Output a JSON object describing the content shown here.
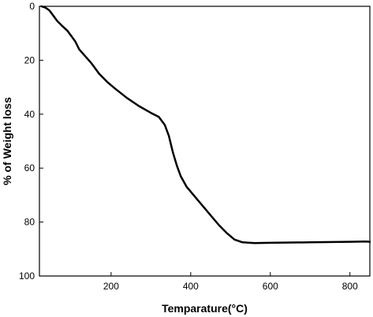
{
  "chart_data": {
    "type": "line",
    "xlabel": "Temparature(°C)",
    "ylabel": "% of Weight loss",
    "xlim": [
      20,
      850
    ],
    "ylim": [
      0,
      100
    ],
    "y_inverted": true,
    "grid": false,
    "x_ticks": [
      200,
      400,
      600,
      800
    ],
    "y_ticks": [
      0,
      20,
      40,
      60,
      80,
      100
    ],
    "series": [
      {
        "color": "#000000",
        "x": [
          25,
          35,
          45,
          55,
          65,
          75,
          90,
          100,
          110,
          120,
          135,
          150,
          170,
          190,
          210,
          240,
          270,
          300,
          320,
          335,
          345,
          355,
          365,
          375,
          390,
          410,
          430,
          450,
          470,
          490,
          510,
          530,
          560,
          600,
          700,
          800,
          840,
          850
        ],
        "y": [
          0,
          0.5,
          1.5,
          3.5,
          5.5,
          7,
          9,
          11,
          13,
          16,
          18.5,
          21,
          25,
          28,
          30.5,
          34,
          37,
          39.5,
          41,
          44,
          48,
          54,
          59,
          63,
          67,
          70.5,
          74,
          77.5,
          81,
          84,
          86.5,
          87.5,
          87.8,
          87.7,
          87.5,
          87.3,
          87.2,
          87.3
        ]
      }
    ]
  }
}
